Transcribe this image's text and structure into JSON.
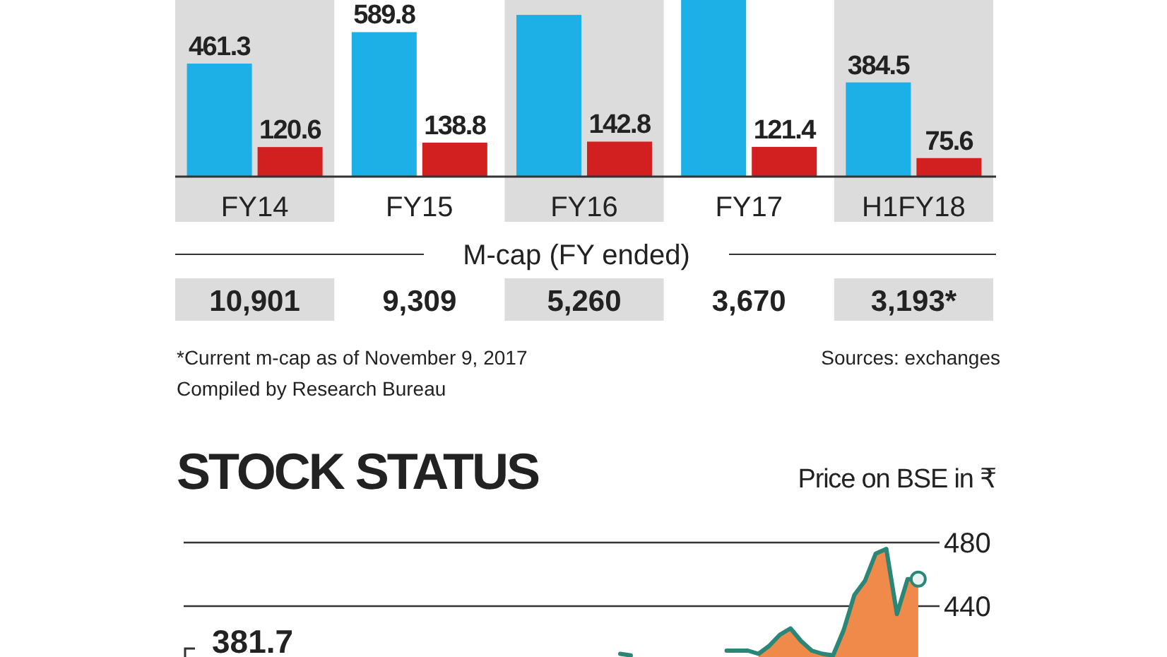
{
  "chart_data": [
    {
      "type": "bar",
      "categories": [
        "FY14",
        "FY15",
        "FY16",
        "FY17",
        "H1FY18"
      ],
      "series": [
        {
          "color": "#1cb0e6",
          "values": [
            461.3,
            589.8,
            660,
            740,
            384.5
          ],
          "value_labels": [
            "461.3",
            "589.8",
            null,
            null,
            "384.5"
          ]
        },
        {
          "color": "#d21f1f",
          "values": [
            120.6,
            138.8,
            142.8,
            121.4,
            75.6
          ],
          "value_labels": [
            "120.6",
            "138.8",
            "142.8",
            "121.4",
            "75.6"
          ]
        }
      ],
      "annotations": [
        "M-cap (FY ended)",
        "10,901",
        "9,309",
        "5,260",
        "3,670",
        "3,193*",
        "*Current m-cap as of November 9, 2017",
        "Sources: exchanges",
        "Compiled by Research Bureau"
      ]
    },
    {
      "type": "line",
      "title": "STOCK STATUS",
      "ylabel": "Price on BSE in ₹",
      "categories": [
        null,
        null,
        null,
        null,
        null,
        null,
        null,
        null,
        null,
        null,
        null,
        null,
        null,
        null,
        null,
        null,
        null,
        null,
        null,
        null,
        null,
        null,
        null,
        null,
        null,
        null,
        null,
        null,
        null,
        null,
        null,
        null,
        null,
        null,
        null,
        null,
        null,
        null,
        null,
        null,
        null,
        null,
        null,
        null,
        null,
        null,
        null,
        null,
        null,
        null,
        null,
        null,
        null,
        null,
        null,
        null,
        null,
        null,
        null,
        null,
        null,
        null,
        null,
        null,
        null,
        null,
        null,
        null,
        null,
        null,
        null,
        null
      ],
      "ylim": [
        408,
        480
      ],
      "yticks": [
        440,
        480
      ],
      "grid": "y",
      "tick_labels": "y",
      "series": [
        {
          "type": "area",
          "color": "#f08a4b",
          "values": [
            null,
            null,
            null,
            null,
            null,
            null,
            null,
            null,
            null,
            null,
            null,
            null,
            null,
            null,
            null,
            null,
            null,
            null,
            null,
            null,
            null,
            null,
            null,
            null,
            null,
            null,
            null,
            null,
            null,
            null,
            null,
            null,
            null,
            null,
            null,
            null,
            null,
            null,
            null,
            null,
            null,
            null,
            null,
            null,
            null,
            null,
            null,
            null,
            null,
            null,
            null,
            null,
            null,
            null,
            410,
            415,
            422,
            426,
            418,
            412,
            410,
            409,
            425,
            447,
            456,
            473,
            476,
            435,
            457,
            457,
            null,
            null
          ]
        },
        {
          "color": "#2a8676",
          "values": [
            null,
            null,
            null,
            null,
            null,
            null,
            null,
            null,
            null,
            null,
            null,
            null,
            null,
            null,
            null,
            null,
            null,
            null,
            null,
            null,
            null,
            null,
            null,
            null,
            null,
            null,
            null,
            null,
            null,
            null,
            null,
            null,
            null,
            null,
            null,
            null,
            null,
            null,
            null,
            null,
            null,
            410,
            409,
            null,
            null,
            null,
            null,
            null,
            null,
            null,
            null,
            412,
            412,
            412,
            410,
            415,
            422,
            426,
            418,
            412,
            410,
            409,
            425,
            447,
            456,
            473,
            476,
            435,
            457,
            457,
            null,
            null
          ]
        }
      ],
      "annotations": [
        "381.7"
      ]
    }
  ]
}
